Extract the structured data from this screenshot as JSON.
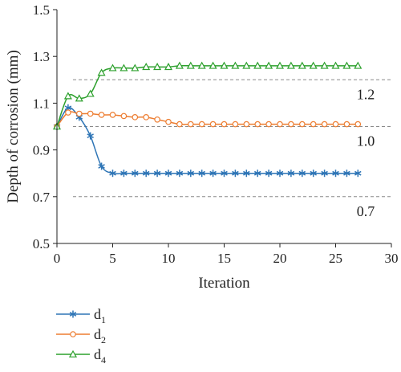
{
  "chart_data": {
    "type": "line",
    "title": "",
    "xlabel": "Iteration",
    "ylabel": "Depth of corrosion (mm)",
    "xlim": [
      0,
      30
    ],
    "ylim": [
      0.5,
      1.5
    ],
    "xticks": [
      "0",
      "5",
      "10",
      "15",
      "20",
      "25",
      "30"
    ],
    "yticks": [
      "0.5",
      "0.7",
      "0.9",
      "1.1",
      "1.3",
      "1.5"
    ],
    "grid": false,
    "legend_placement": "bottom-left",
    "reference_lines": [
      {
        "y": 1.2,
        "label": "1.2"
      },
      {
        "y": 1.0,
        "label": "1.0"
      },
      {
        "y": 0.7,
        "label": "0.7"
      }
    ],
    "series": [
      {
        "name_base": "d",
        "name_sub": "1",
        "marker": "asterisk",
        "color": "#2e75b6",
        "x": [
          0,
          1,
          2,
          3,
          4,
          5,
          6,
          7,
          8,
          9,
          10,
          11,
          12,
          13,
          14,
          15,
          16,
          17,
          18,
          19,
          20,
          21,
          22,
          23,
          24,
          25,
          26,
          27
        ],
        "y": [
          1.0,
          1.08,
          1.04,
          0.96,
          0.83,
          0.8,
          0.8,
          0.8,
          0.8,
          0.8,
          0.8,
          0.8,
          0.8,
          0.8,
          0.8,
          0.8,
          0.8,
          0.8,
          0.8,
          0.8,
          0.8,
          0.8,
          0.8,
          0.8,
          0.8,
          0.8,
          0.8,
          0.8
        ]
      },
      {
        "name_base": "d",
        "name_sub": "2",
        "marker": "circle",
        "color": "#ed7d31",
        "x": [
          0,
          1,
          2,
          3,
          4,
          5,
          6,
          7,
          8,
          9,
          10,
          11,
          12,
          13,
          14,
          15,
          16,
          17,
          18,
          19,
          20,
          21,
          22,
          23,
          24,
          25,
          26,
          27
        ],
        "y": [
          1.0,
          1.06,
          1.055,
          1.055,
          1.05,
          1.05,
          1.045,
          1.04,
          1.04,
          1.03,
          1.02,
          1.01,
          1.01,
          1.01,
          1.01,
          1.01,
          1.01,
          1.01,
          1.01,
          1.01,
          1.01,
          1.01,
          1.01,
          1.01,
          1.01,
          1.01,
          1.01,
          1.01
        ]
      },
      {
        "name_base": "d",
        "name_sub": "4",
        "marker": "triangle",
        "color": "#2ca02c",
        "x": [
          0,
          1,
          2,
          3,
          4,
          5,
          6,
          7,
          8,
          9,
          10,
          11,
          12,
          13,
          14,
          15,
          16,
          17,
          18,
          19,
          20,
          21,
          22,
          23,
          24,
          25,
          26,
          27
        ],
        "y": [
          1.0,
          1.13,
          1.12,
          1.14,
          1.23,
          1.25,
          1.25,
          1.25,
          1.255,
          1.255,
          1.255,
          1.26,
          1.26,
          1.26,
          1.26,
          1.26,
          1.26,
          1.26,
          1.26,
          1.26,
          1.26,
          1.26,
          1.26,
          1.26,
          1.26,
          1.26,
          1.26,
          1.26
        ]
      }
    ]
  }
}
